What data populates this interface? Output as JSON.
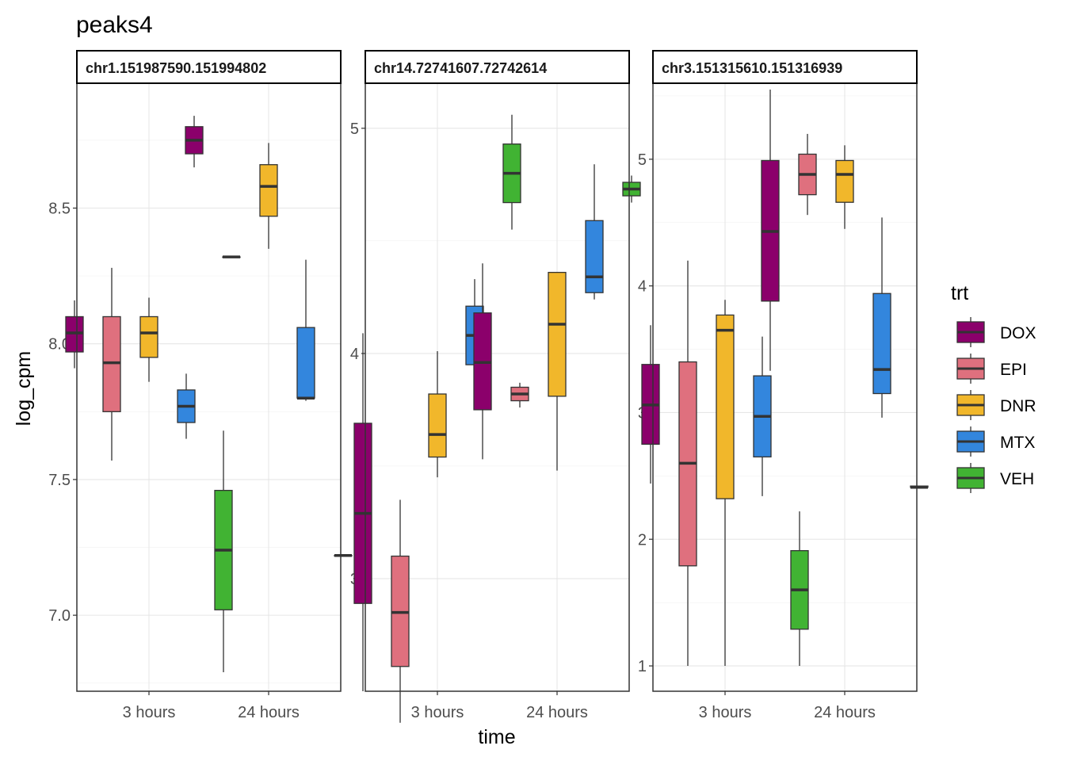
{
  "chart_data": {
    "type": "boxplot",
    "title": "peaks4",
    "xlabel": "time",
    "ylabel": "log_cpm",
    "categories": [
      "3 hours",
      "24 hours"
    ],
    "legend": {
      "title": "trt",
      "position": "right",
      "entries": [
        {
          "name": "DOX",
          "color": "#8B006B"
        },
        {
          "name": "EPI",
          "color": "#DF707E"
        },
        {
          "name": "DNR",
          "color": "#F1B72B"
        },
        {
          "name": "MTX",
          "color": "#3386DD"
        },
        {
          "name": "VEH",
          "color": "#41B333"
        }
      ]
    },
    "panels": [
      {
        "strip": "chr1.151987590.151994802",
        "ylim": [
          6.72,
          8.96
        ],
        "yticks": [
          7.0,
          7.5,
          8.0,
          8.5
        ],
        "yticklabels": [
          "7.0",
          "7.5",
          "8.0",
          "8.5"
        ],
        "groups": [
          {
            "time": "3 hours",
            "boxes": [
              {
                "trt": "DOX",
                "min": 7.91,
                "q1": 7.97,
                "median": 8.04,
                "q3": 8.1,
                "max": 8.16
              },
              {
                "trt": "EPI",
                "min": 7.57,
                "q1": 7.75,
                "median": 7.93,
                "q3": 8.1,
                "max": 8.28
              },
              {
                "trt": "DNR",
                "min": 7.86,
                "q1": 7.95,
                "median": 8.04,
                "q3": 8.1,
                "max": 8.17
              },
              {
                "trt": "MTX",
                "min": 7.65,
                "q1": 7.71,
                "median": 7.77,
                "q3": 7.83,
                "max": 7.89
              },
              {
                "trt": "VEH",
                "min": 6.79,
                "q1": 7.02,
                "median": 7.24,
                "q3": 7.46,
                "max": 7.68
              }
            ]
          },
          {
            "time": "24 hours",
            "boxes": [
              {
                "trt": "DOX",
                "min": 8.65,
                "q1": 8.7,
                "median": 8.75,
                "q3": 8.8,
                "max": 8.84
              },
              {
                "trt": "EPI",
                "min": 8.32,
                "q1": 8.32,
                "median": 8.32,
                "q3": 8.32,
                "max": 8.32
              },
              {
                "trt": "DNR",
                "min": 8.35,
                "q1": 8.47,
                "median": 8.58,
                "q3": 8.66,
                "max": 8.74
              },
              {
                "trt": "MTX",
                "min": 7.79,
                "q1": 7.8,
                "median": 7.8,
                "q3": 8.06,
                "max": 8.31
              },
              {
                "trt": "VEH",
                "min": 7.22,
                "q1": 7.22,
                "median": 7.22,
                "q3": 7.22,
                "max": 7.22
              }
            ]
          }
        ]
      },
      {
        "strip": "chr14.72741607.72742614",
        "ylim": [
          2.5,
          5.2
        ],
        "yticks": [
          3,
          4,
          5
        ],
        "yticklabels": [
          "3",
          "4",
          "5"
        ],
        "groups": [
          {
            "time": "3 hours",
            "boxes": [
              {
                "trt": "DOX",
                "min": 2.5,
                "q1": 2.89,
                "median": 3.29,
                "q3": 3.69,
                "max": 4.09
              },
              {
                "trt": "EPI",
                "min": 2.36,
                "q1": 2.61,
                "median": 2.85,
                "q3": 3.1,
                "max": 3.35
              },
              {
                "trt": "DNR",
                "min": 3.45,
                "q1": 3.54,
                "median": 3.64,
                "q3": 3.82,
                "max": 4.01
              },
              {
                "trt": "MTX",
                "min": 3.82,
                "q1": 3.95,
                "median": 4.08,
                "q3": 4.21,
                "max": 4.33
              },
              {
                "trt": "VEH",
                "min": 4.55,
                "q1": 4.67,
                "median": 4.8,
                "q3": 4.93,
                "max": 5.06
              }
            ]
          },
          {
            "time": "24 hours",
            "boxes": [
              {
                "trt": "DOX",
                "min": 3.53,
                "q1": 3.75,
                "median": 3.96,
                "q3": 4.18,
                "max": 4.4
              },
              {
                "trt": "EPI",
                "min": 3.76,
                "q1": 3.79,
                "median": 3.82,
                "q3": 3.85,
                "max": 3.87
              },
              {
                "trt": "DNR",
                "min": 3.48,
                "q1": 3.81,
                "median": 4.13,
                "q3": 4.36,
                "max": 4.36
              },
              {
                "trt": "MTX",
                "min": 4.24,
                "q1": 4.27,
                "median": 4.34,
                "q3": 4.59,
                "max": 4.84
              },
              {
                "trt": "VEH",
                "min": 4.67,
                "q1": 4.7,
                "median": 4.73,
                "q3": 4.76,
                "max": 4.79
              }
            ]
          }
        ]
      },
      {
        "strip": "chr3.151315610.151316939",
        "ylim": [
          0.8,
          5.6
        ],
        "yticks": [
          1,
          2,
          3,
          4,
          5
        ],
        "yticklabels": [
          "1",
          "2",
          "3",
          "4",
          "5"
        ],
        "groups": [
          {
            "time": "3 hours",
            "boxes": [
              {
                "trt": "DOX",
                "min": 2.44,
                "q1": 2.75,
                "median": 3.06,
                "q3": 3.38,
                "max": 3.69
              },
              {
                "trt": "EPI",
                "min": 1.0,
                "q1": 1.79,
                "median": 2.6,
                "q3": 3.4,
                "max": 4.2
              },
              {
                "trt": "DNR",
                "min": 1.0,
                "q1": 2.32,
                "median": 3.65,
                "q3": 3.77,
                "max": 3.89
              },
              {
                "trt": "MTX",
                "min": 2.34,
                "q1": 2.65,
                "median": 2.97,
                "q3": 3.29,
                "max": 3.6
              },
              {
                "trt": "VEH",
                "min": 1.0,
                "q1": 1.29,
                "median": 1.6,
                "q3": 1.91,
                "max": 2.22
              }
            ]
          },
          {
            "time": "24 hours",
            "boxes": [
              {
                "trt": "DOX",
                "min": 3.33,
                "q1": 3.88,
                "median": 4.43,
                "q3": 4.99,
                "max": 5.55
              },
              {
                "trt": "EPI",
                "min": 4.56,
                "q1": 4.72,
                "median": 4.88,
                "q3": 5.04,
                "max": 5.2
              },
              {
                "trt": "DNR",
                "min": 4.45,
                "q1": 4.66,
                "median": 4.88,
                "q3": 4.99,
                "max": 5.11
              },
              {
                "trt": "MTX",
                "min": 2.96,
                "q1": 3.15,
                "median": 3.34,
                "q3": 3.94,
                "max": 4.54
              },
              {
                "trt": "VEH",
                "min": 2.4,
                "q1": 2.41,
                "median": 2.41,
                "q3": 2.42,
                "max": 2.42
              }
            ]
          }
        ]
      }
    ]
  }
}
